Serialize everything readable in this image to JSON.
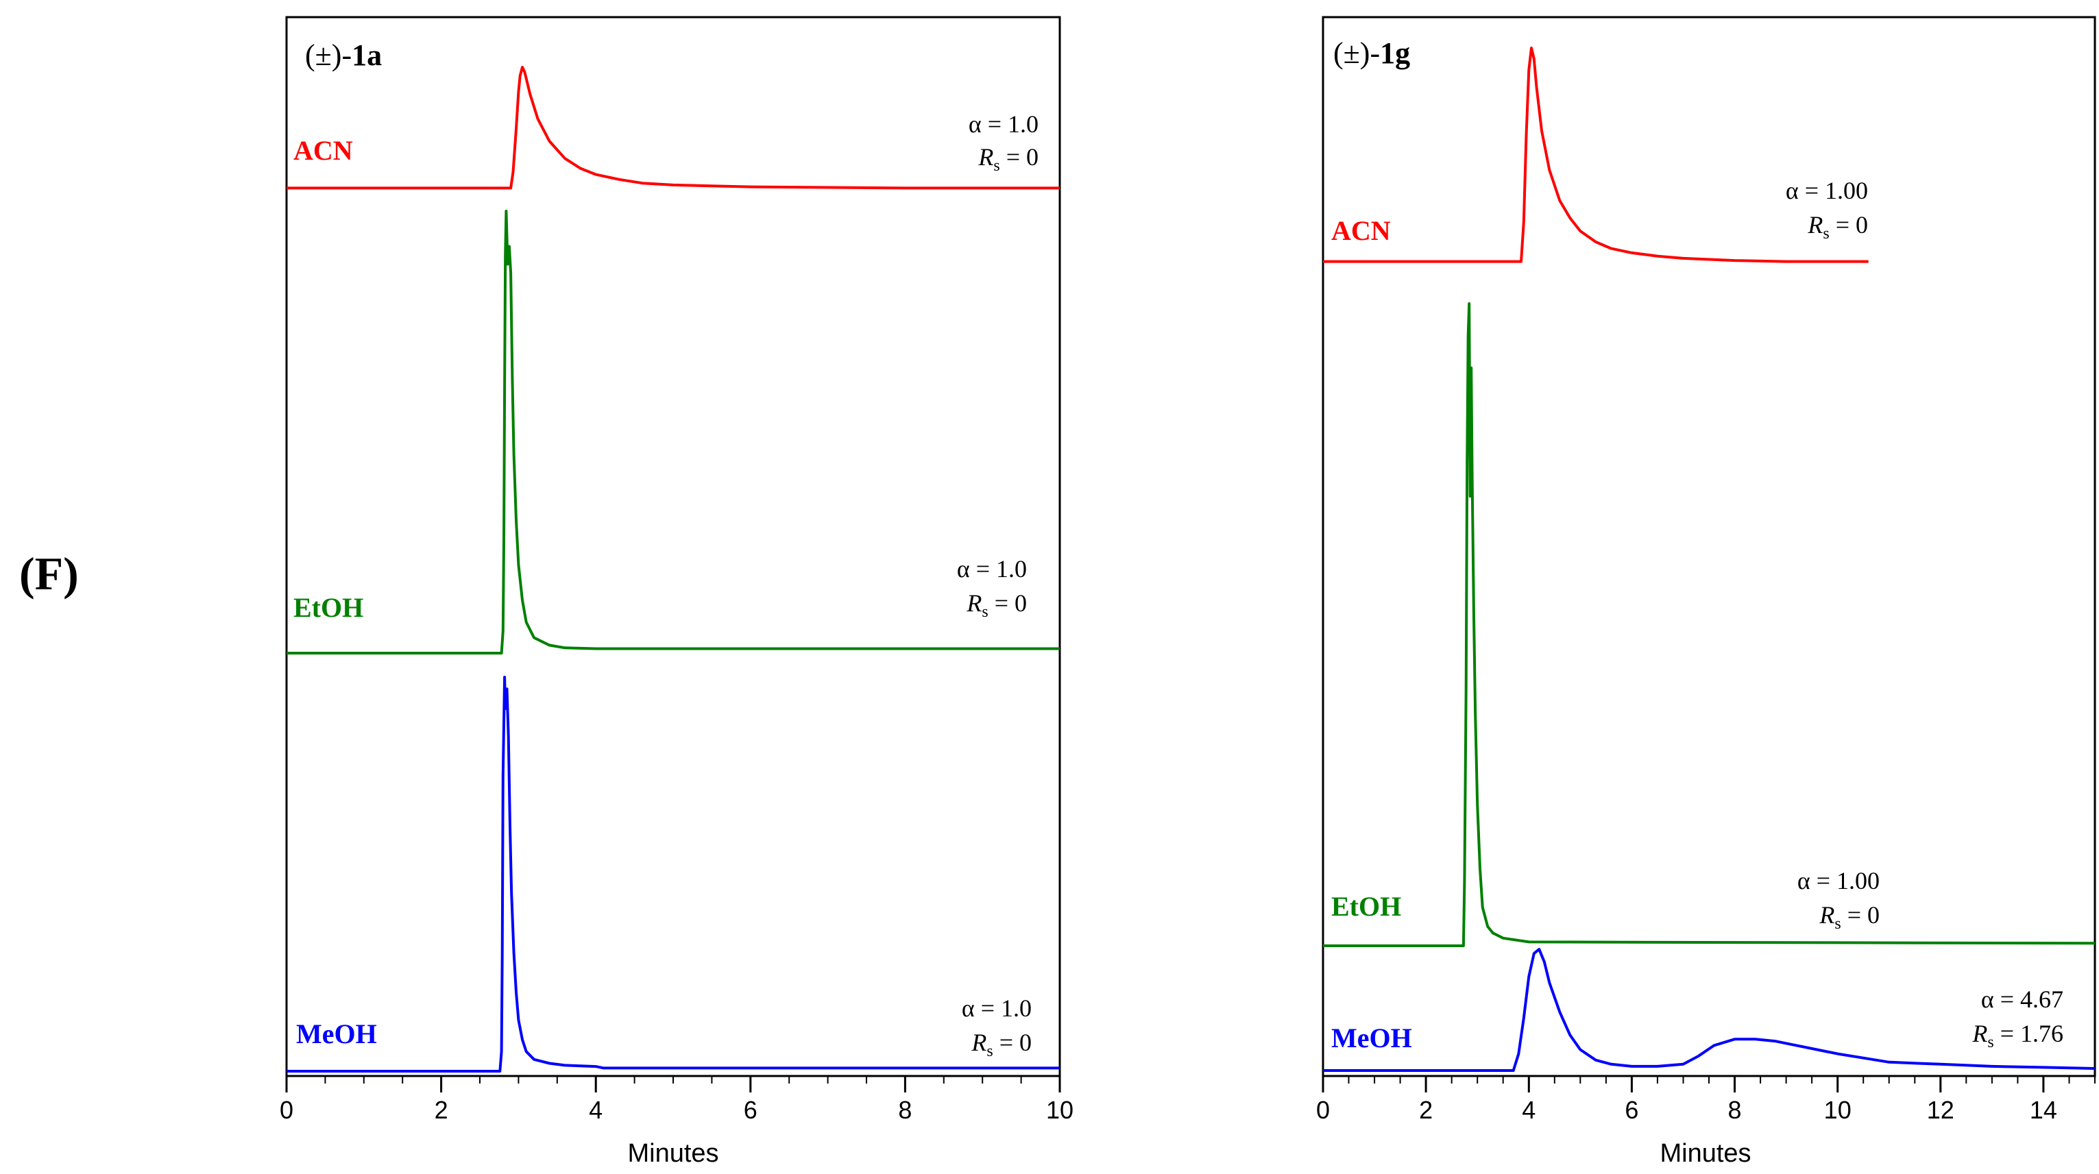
{
  "figure_label": "(F)",
  "chart_data": [
    {
      "type": "line",
      "compound_prefix": "(±)-",
      "compound_id": "1a",
      "xlabel": "Minutes",
      "xlim": [
        0,
        10
      ],
      "xticks": [
        0,
        2,
        4,
        6,
        8,
        10
      ],
      "traces": [
        {
          "name": "ACN",
          "color": "#ff0000",
          "alpha_label": "α = 1.0",
          "rs_sym": "R",
          "rs_sub": "s",
          "rs_value": " = 0",
          "baseline": 0.02,
          "peaks": [
            {
              "t": 3.05,
              "height": 0.98,
              "rise": 0.06,
              "tail": 0.32
            }
          ],
          "x": [
            0,
            2.9,
            2.93,
            2.97,
            3.0,
            3.02,
            3.05,
            3.08,
            3.15,
            3.25,
            3.4,
            3.6,
            3.8,
            4.0,
            4.3,
            4.6,
            5.0,
            6.0,
            7.0,
            8.0,
            9.0,
            10.0
          ],
          "y": [
            0.02,
            0.02,
            0.15,
            0.5,
            0.8,
            0.93,
            1.0,
            0.96,
            0.78,
            0.58,
            0.4,
            0.26,
            0.18,
            0.13,
            0.09,
            0.06,
            0.045,
            0.03,
            0.025,
            0.02,
            0.02,
            0.02
          ]
        },
        {
          "name": "EtOH",
          "color": "#008000",
          "alpha_label": "α = 1.0",
          "rs_sym": "R",
          "rs_sub": "s",
          "rs_value": " = 0",
          "x": [
            0,
            2.78,
            2.8,
            2.81,
            2.82,
            2.83,
            2.84,
            2.86,
            2.88,
            2.9,
            2.92,
            2.94,
            2.97,
            3.0,
            3.05,
            3.1,
            3.2,
            3.4,
            3.6,
            4.0,
            10.0
          ],
          "y": [
            0.0,
            0.0,
            0.05,
            0.25,
            0.6,
            0.9,
            1.0,
            0.88,
            0.92,
            0.86,
            0.62,
            0.45,
            0.3,
            0.2,
            0.12,
            0.07,
            0.035,
            0.018,
            0.012,
            0.01,
            0.01
          ]
        },
        {
          "name": "MeOH",
          "color": "#0000ff",
          "alpha_label": "α = 1.0",
          "rs_sym": "R",
          "rs_sub": "s",
          "rs_value": " = 0",
          "x": [
            0,
            2.76,
            2.78,
            2.79,
            2.8,
            2.82,
            2.83,
            2.85,
            2.87,
            2.89,
            2.91,
            2.94,
            2.97,
            3.0,
            3.05,
            3.1,
            3.2,
            3.4,
            3.6,
            4.0,
            4.1,
            10.0
          ],
          "y": [
            0.0,
            0.0,
            0.05,
            0.3,
            0.75,
            1.0,
            0.92,
            0.97,
            0.85,
            0.62,
            0.45,
            0.3,
            0.2,
            0.13,
            0.08,
            0.05,
            0.03,
            0.02,
            0.015,
            0.012,
            0.008,
            0.008
          ]
        }
      ]
    },
    {
      "type": "line",
      "compound_prefix": "(±)-",
      "compound_id": "1g",
      "xlabel": "Minutes",
      "xlim": [
        0,
        15
      ],
      "xticks": [
        0,
        2,
        4,
        6,
        8,
        10,
        12,
        14
      ],
      "traces": [
        {
          "name": "ACN",
          "color": "#ff0000",
          "alpha_label": "α = 1.00",
          "rs_sym": "R",
          "rs_sub": "s",
          "rs_value": " = 0",
          "x": [
            0,
            3.85,
            3.9,
            3.95,
            4.0,
            4.05,
            4.1,
            4.15,
            4.25,
            4.4,
            4.6,
            4.8,
            5.0,
            5.3,
            5.6,
            6.0,
            6.5,
            7.0,
            8.0,
            9.0,
            10.0,
            10.6
          ],
          "y": [
            0.02,
            0.02,
            0.2,
            0.6,
            0.9,
            1.0,
            0.95,
            0.82,
            0.62,
            0.44,
            0.3,
            0.22,
            0.16,
            0.11,
            0.08,
            0.06,
            0.045,
            0.035,
            0.025,
            0.02,
            0.02,
            0.02
          ]
        },
        {
          "name": "EtOH",
          "color": "#008000",
          "alpha_label": "α = 1.00",
          "rs_sym": "R",
          "rs_sub": "s",
          "rs_value": " = 0",
          "x": [
            0,
            2.73,
            2.75,
            2.78,
            2.8,
            2.82,
            2.84,
            2.86,
            2.88,
            2.9,
            2.93,
            2.96,
            3.0,
            3.05,
            3.1,
            3.2,
            3.3,
            3.5,
            4.0,
            15.0
          ],
          "y": [
            0.0,
            0.0,
            0.1,
            0.4,
            0.75,
            0.95,
            1.0,
            0.7,
            0.9,
            0.72,
            0.52,
            0.36,
            0.22,
            0.12,
            0.06,
            0.03,
            0.02,
            0.012,
            0.006,
            0.004
          ]
        },
        {
          "name": "MeOH",
          "color": "#0000ff",
          "alpha_label": "α = 4.67",
          "rs_sym": "R",
          "rs_sub": "s",
          "rs_value": " = 1.76",
          "x": [
            0,
            3.7,
            3.8,
            3.9,
            4.0,
            4.1,
            4.2,
            4.3,
            4.4,
            4.6,
            4.8,
            5.0,
            5.3,
            5.6,
            6.0,
            6.5,
            7.0,
            7.3,
            7.6,
            8.0,
            8.4,
            8.8,
            9.2,
            9.6,
            10.0,
            10.5,
            11.0,
            12.0,
            13.0,
            14.0,
            15.0
          ],
          "y": [
            0.0,
            0.0,
            0.08,
            0.25,
            0.45,
            0.56,
            0.58,
            0.52,
            0.42,
            0.28,
            0.17,
            0.1,
            0.05,
            0.03,
            0.02,
            0.02,
            0.03,
            0.07,
            0.12,
            0.15,
            0.15,
            0.14,
            0.12,
            0.1,
            0.08,
            0.06,
            0.04,
            0.03,
            0.02,
            0.015,
            0.01
          ]
        }
      ]
    }
  ]
}
